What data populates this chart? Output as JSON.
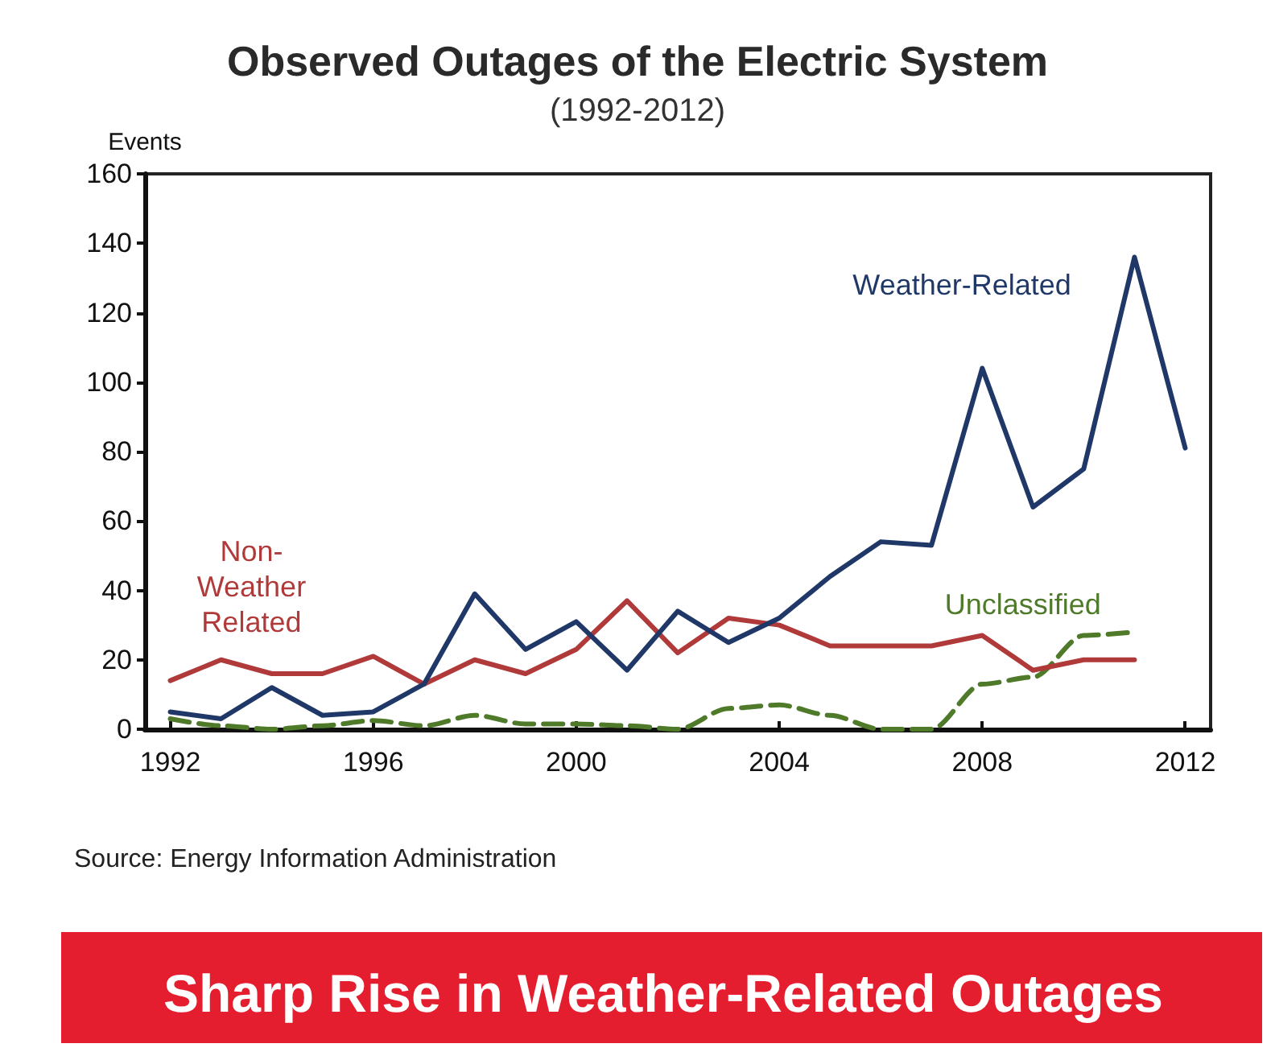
{
  "chart_data": {
    "type": "line",
    "title": "Observed Outages of the Electric System",
    "subtitle": "(1992-2012)",
    "ylabel": "Events",
    "x": [
      1992,
      1993,
      1994,
      1995,
      1996,
      1997,
      1998,
      1999,
      2000,
      2001,
      2002,
      2003,
      2004,
      2005,
      2006,
      2007,
      2008,
      2009,
      2010,
      2011,
      2012
    ],
    "xlim": [
      1991.5,
      2012.5
    ],
    "xticks": [
      1992,
      1996,
      2000,
      2004,
      2008,
      2012
    ],
    "ylim": [
      0,
      160
    ],
    "yticks": [
      0,
      20,
      40,
      60,
      80,
      100,
      120,
      140,
      160
    ],
    "grid": false,
    "legend": false,
    "marker": "none",
    "series": [
      {
        "name": "Weather-Related",
        "color": "#1f3868",
        "line_style": "solid",
        "values": [
          5,
          3,
          12,
          4,
          5,
          13,
          39,
          23,
          31,
          17,
          34,
          25,
          32,
          44,
          54,
          53,
          104,
          64,
          75,
          136,
          81
        ]
      },
      {
        "name": "Non-\nWeather\nRelated",
        "color": "#b03a3a",
        "line_style": "solid",
        "values": [
          14,
          20,
          16,
          16,
          21,
          13,
          20,
          16,
          23,
          37,
          22,
          32,
          30,
          24,
          24,
          24,
          27,
          17,
          20,
          20,
          null
        ]
      },
      {
        "name": "Unclassified",
        "color": "#4e7a2a",
        "line_style": "dashed",
        "values": [
          3,
          1,
          0,
          1,
          2.5,
          1,
          4,
          1.5,
          1.5,
          1,
          0,
          6,
          7,
          4,
          0,
          0,
          13,
          15,
          27,
          28,
          null
        ]
      }
    ],
    "annotations": [
      "Source: Energy Information Administration",
      "Sharp Rise in Weather-Related Outages"
    ]
  }
}
